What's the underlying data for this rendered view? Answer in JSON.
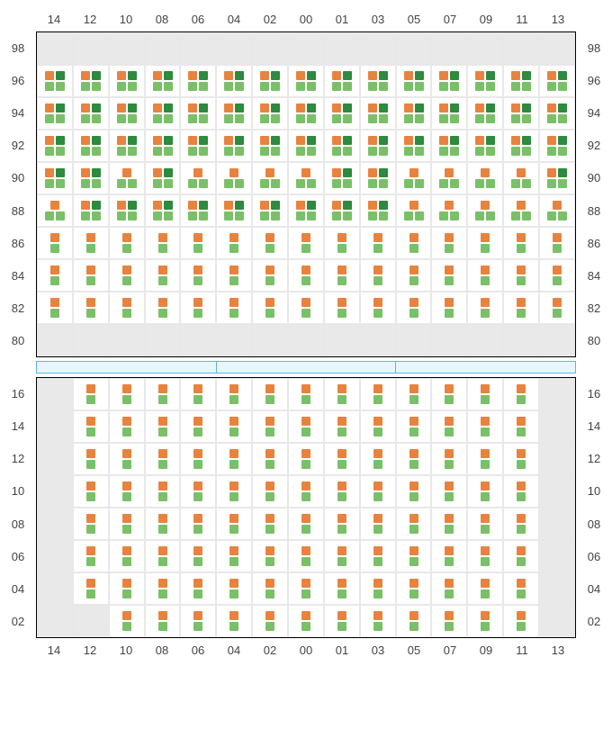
{
  "colors": {
    "orange": "#e8833f",
    "light_green": "#7ac068",
    "dark_green": "#2d8a3e",
    "empty_bg": "#e9e9e9",
    "filled_bg": "#ffffff",
    "grid_line": "#e8e8e8",
    "section_border": "#000000",
    "label_color": "#444444",
    "stage_border": "#5bb8e8",
    "stage_fill": "#e8f6fd"
  },
  "col_labels": [
    "14",
    "12",
    "10",
    "08",
    "06",
    "04",
    "02",
    "00",
    "01",
    "03",
    "05",
    "07",
    "09",
    "11",
    "13"
  ],
  "upper": {
    "row_labels": [
      "98",
      "96",
      "94",
      "92",
      "90",
      "88",
      "86",
      "84",
      "82",
      "80"
    ],
    "rows": [
      [
        {
          "t": "e"
        },
        {
          "t": "e"
        },
        {
          "t": "e"
        },
        {
          "t": "e"
        },
        {
          "t": "e"
        },
        {
          "t": "e"
        },
        {
          "t": "e"
        },
        {
          "t": "e"
        },
        {
          "t": "e"
        },
        {
          "t": "e"
        },
        {
          "t": "e"
        },
        {
          "t": "e"
        },
        {
          "t": "e"
        },
        {
          "t": "e"
        },
        {
          "t": "e"
        }
      ],
      [
        {
          "t": "d4"
        },
        {
          "t": "d4"
        },
        {
          "t": "d4"
        },
        {
          "t": "d4"
        },
        {
          "t": "d4"
        },
        {
          "t": "d4"
        },
        {
          "t": "d4"
        },
        {
          "t": "d4"
        },
        {
          "t": "d4"
        },
        {
          "t": "d4"
        },
        {
          "t": "d4"
        },
        {
          "t": "d4"
        },
        {
          "t": "d4"
        },
        {
          "t": "d4"
        },
        {
          "t": "d4"
        }
      ],
      [
        {
          "t": "d4"
        },
        {
          "t": "d4"
        },
        {
          "t": "d4"
        },
        {
          "t": "d4"
        },
        {
          "t": "d4"
        },
        {
          "t": "d4"
        },
        {
          "t": "d4"
        },
        {
          "t": "d4"
        },
        {
          "t": "d4"
        },
        {
          "t": "d4"
        },
        {
          "t": "d4"
        },
        {
          "t": "d4"
        },
        {
          "t": "d4"
        },
        {
          "t": "d4"
        },
        {
          "t": "d4"
        }
      ],
      [
        {
          "t": "d4"
        },
        {
          "t": "d4"
        },
        {
          "t": "d4"
        },
        {
          "t": "d4"
        },
        {
          "t": "d4"
        },
        {
          "t": "d4"
        },
        {
          "t": "d4"
        },
        {
          "t": "d4"
        },
        {
          "t": "d4"
        },
        {
          "t": "d4"
        },
        {
          "t": "d4"
        },
        {
          "t": "d4"
        },
        {
          "t": "d4"
        },
        {
          "t": "d4"
        },
        {
          "t": "d4"
        }
      ],
      [
        {
          "t": "d4"
        },
        {
          "t": "d4"
        },
        {
          "t": "d3a"
        },
        {
          "t": "d4"
        },
        {
          "t": "d3a"
        },
        {
          "t": "d3a"
        },
        {
          "t": "d3a"
        },
        {
          "t": "d3a"
        },
        {
          "t": "d4"
        },
        {
          "t": "d4"
        },
        {
          "t": "d3a"
        },
        {
          "t": "d3a"
        },
        {
          "t": "d3a"
        },
        {
          "t": "d3a"
        },
        {
          "t": "d4"
        }
      ],
      [
        {
          "t": "d3a"
        },
        {
          "t": "d4"
        },
        {
          "t": "d4"
        },
        {
          "t": "d4"
        },
        {
          "t": "d4"
        },
        {
          "t": "d4"
        },
        {
          "t": "d4"
        },
        {
          "t": "d4"
        },
        {
          "t": "d4"
        },
        {
          "t": "d4"
        },
        {
          "t": "d3a"
        },
        {
          "t": "d3a"
        },
        {
          "t": "d3a"
        },
        {
          "t": "d3a"
        },
        {
          "t": "d3a"
        }
      ],
      [
        {
          "t": "d2"
        },
        {
          "t": "d2"
        },
        {
          "t": "d2"
        },
        {
          "t": "d2"
        },
        {
          "t": "d2"
        },
        {
          "t": "d2"
        },
        {
          "t": "d2"
        },
        {
          "t": "d2"
        },
        {
          "t": "d2"
        },
        {
          "t": "d2"
        },
        {
          "t": "d2"
        },
        {
          "t": "d2"
        },
        {
          "t": "d2"
        },
        {
          "t": "d2"
        },
        {
          "t": "d2"
        }
      ],
      [
        {
          "t": "d2"
        },
        {
          "t": "d2"
        },
        {
          "t": "d2"
        },
        {
          "t": "d2"
        },
        {
          "t": "d2"
        },
        {
          "t": "d2"
        },
        {
          "t": "d2"
        },
        {
          "t": "d2"
        },
        {
          "t": "d2"
        },
        {
          "t": "d2"
        },
        {
          "t": "d2"
        },
        {
          "t": "d2"
        },
        {
          "t": "d2"
        },
        {
          "t": "d2"
        },
        {
          "t": "d2"
        }
      ],
      [
        {
          "t": "d2"
        },
        {
          "t": "d2"
        },
        {
          "t": "d2"
        },
        {
          "t": "d2"
        },
        {
          "t": "d2"
        },
        {
          "t": "d2"
        },
        {
          "t": "d2"
        },
        {
          "t": "d2"
        },
        {
          "t": "d2"
        },
        {
          "t": "d2"
        },
        {
          "t": "d2"
        },
        {
          "t": "d2"
        },
        {
          "t": "d2"
        },
        {
          "t": "d2"
        },
        {
          "t": "d2"
        }
      ],
      [
        {
          "t": "e"
        },
        {
          "t": "e"
        },
        {
          "t": "e"
        },
        {
          "t": "e"
        },
        {
          "t": "e"
        },
        {
          "t": "e"
        },
        {
          "t": "e"
        },
        {
          "t": "e"
        },
        {
          "t": "e"
        },
        {
          "t": "e"
        },
        {
          "t": "e"
        },
        {
          "t": "e"
        },
        {
          "t": "e"
        },
        {
          "t": "e"
        },
        {
          "t": "e"
        }
      ]
    ]
  },
  "stage_segments": 3,
  "lower": {
    "row_labels": [
      "16",
      "14",
      "12",
      "10",
      "08",
      "06",
      "04",
      "02"
    ],
    "rows": [
      [
        {
          "t": "e"
        },
        {
          "t": "d2"
        },
        {
          "t": "d2"
        },
        {
          "t": "d2"
        },
        {
          "t": "d2"
        },
        {
          "t": "d2"
        },
        {
          "t": "d2"
        },
        {
          "t": "d2"
        },
        {
          "t": "d2"
        },
        {
          "t": "d2"
        },
        {
          "t": "d2"
        },
        {
          "t": "d2"
        },
        {
          "t": "d2"
        },
        {
          "t": "d2"
        },
        {
          "t": "e"
        }
      ],
      [
        {
          "t": "e"
        },
        {
          "t": "d2"
        },
        {
          "t": "d2"
        },
        {
          "t": "d2"
        },
        {
          "t": "d2"
        },
        {
          "t": "d2"
        },
        {
          "t": "d2"
        },
        {
          "t": "d2"
        },
        {
          "t": "d2"
        },
        {
          "t": "d2"
        },
        {
          "t": "d2"
        },
        {
          "t": "d2"
        },
        {
          "t": "d2"
        },
        {
          "t": "d2"
        },
        {
          "t": "e"
        }
      ],
      [
        {
          "t": "e"
        },
        {
          "t": "d2"
        },
        {
          "t": "d2"
        },
        {
          "t": "d2"
        },
        {
          "t": "d2"
        },
        {
          "t": "d2"
        },
        {
          "t": "d2"
        },
        {
          "t": "d2"
        },
        {
          "t": "d2"
        },
        {
          "t": "d2"
        },
        {
          "t": "d2"
        },
        {
          "t": "d2"
        },
        {
          "t": "d2"
        },
        {
          "t": "d2"
        },
        {
          "t": "e"
        }
      ],
      [
        {
          "t": "e"
        },
        {
          "t": "d2"
        },
        {
          "t": "d2"
        },
        {
          "t": "d2"
        },
        {
          "t": "d2"
        },
        {
          "t": "d2"
        },
        {
          "t": "d2"
        },
        {
          "t": "d2"
        },
        {
          "t": "d2"
        },
        {
          "t": "d2"
        },
        {
          "t": "d2"
        },
        {
          "t": "d2"
        },
        {
          "t": "d2"
        },
        {
          "t": "d2"
        },
        {
          "t": "e"
        }
      ],
      [
        {
          "t": "e"
        },
        {
          "t": "d2"
        },
        {
          "t": "d2"
        },
        {
          "t": "d2"
        },
        {
          "t": "d2"
        },
        {
          "t": "d2"
        },
        {
          "t": "d2"
        },
        {
          "t": "d2"
        },
        {
          "t": "d2"
        },
        {
          "t": "d2"
        },
        {
          "t": "d2"
        },
        {
          "t": "d2"
        },
        {
          "t": "d2"
        },
        {
          "t": "d2"
        },
        {
          "t": "e"
        }
      ],
      [
        {
          "t": "e"
        },
        {
          "t": "d2"
        },
        {
          "t": "d2"
        },
        {
          "t": "d2"
        },
        {
          "t": "d2"
        },
        {
          "t": "d2"
        },
        {
          "t": "d2"
        },
        {
          "t": "d2"
        },
        {
          "t": "d2"
        },
        {
          "t": "d2"
        },
        {
          "t": "d2"
        },
        {
          "t": "d2"
        },
        {
          "t": "d2"
        },
        {
          "t": "d2"
        },
        {
          "t": "e"
        }
      ],
      [
        {
          "t": "e"
        },
        {
          "t": "d2"
        },
        {
          "t": "d2"
        },
        {
          "t": "d2"
        },
        {
          "t": "d2"
        },
        {
          "t": "d2"
        },
        {
          "t": "d2"
        },
        {
          "t": "d2"
        },
        {
          "t": "d2"
        },
        {
          "t": "d2"
        },
        {
          "t": "d2"
        },
        {
          "t": "d2"
        },
        {
          "t": "d2"
        },
        {
          "t": "d2"
        },
        {
          "t": "e"
        }
      ],
      [
        {
          "t": "e"
        },
        {
          "t": "e"
        },
        {
          "t": "d2"
        },
        {
          "t": "d2"
        },
        {
          "t": "d2"
        },
        {
          "t": "d2"
        },
        {
          "t": "d2"
        },
        {
          "t": "d2"
        },
        {
          "t": "d2"
        },
        {
          "t": "d2"
        },
        {
          "t": "d2"
        },
        {
          "t": "d2"
        },
        {
          "t": "d2"
        },
        {
          "t": "d2"
        },
        {
          "t": "e"
        }
      ]
    ]
  },
  "cell_types": {
    "e": {
      "bg": "empty",
      "dots": []
    },
    "d2": {
      "bg": "filled",
      "dots": [
        [
          "orange"
        ],
        [
          "light_green"
        ]
      ]
    },
    "d3a": {
      "bg": "filled",
      "dots": [
        [
          "orange"
        ],
        [
          "light_green",
          "light_green"
        ]
      ]
    },
    "d4": {
      "bg": "filled",
      "dots": [
        [
          "orange",
          "dark_green"
        ],
        [
          "light_green",
          "light_green"
        ]
      ]
    }
  }
}
